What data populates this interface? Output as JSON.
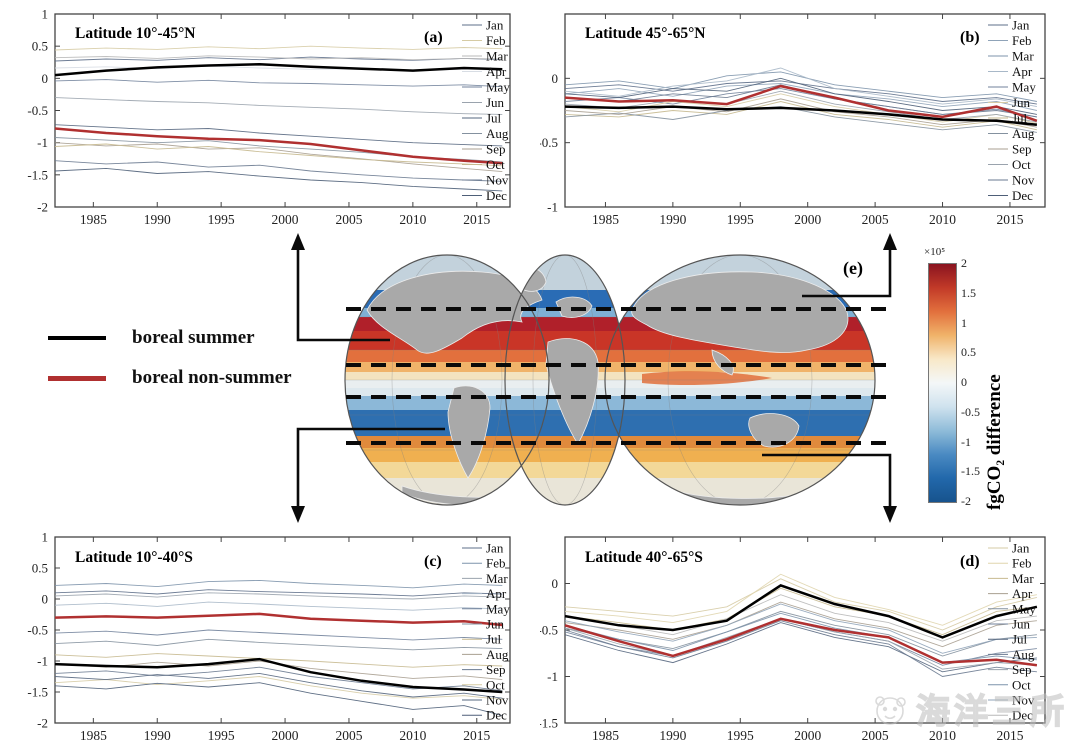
{
  "legend": {
    "summer_label": "boreal summer",
    "non_summer_label": "boreal non-summer",
    "summer_color": "#000000",
    "non_summer_color": "#b03030"
  },
  "map": {
    "panel_label": "(e)",
    "land_color": "#a9a9a9",
    "dashed_latitudes": [
      "45N",
      "10N",
      "10S",
      "40S"
    ],
    "band_colors": [
      "#c3d2dc",
      "#2a6cb5",
      "#7fb0d4",
      "#b0202a",
      "#c93527",
      "#e2703d",
      "#f0b36a",
      "#f3e3c0",
      "#e9eef0",
      "#dde8ee",
      "#8cb8d8",
      "#2e6fb0",
      "#e08a3c",
      "#f0b050",
      "#f3d898",
      "#e9e5d8"
    ],
    "accent_warm": "#e0703c",
    "colorbar": {
      "exponent": "×10⁵",
      "ticks": [
        "2",
        "1.5",
        "1",
        "0.5",
        "0",
        "-0.5",
        "-1",
        "-1.5",
        "-2"
      ],
      "label": "fgCO₂ difference",
      "stops": [
        "#8a1420",
        "#c23a28",
        "#e2703d",
        "#f0b36a",
        "#f8e8c8",
        "#f4f7f8",
        "#cfe2ee",
        "#8fbcd9",
        "#4a8ac2",
        "#2268ab",
        "#17538d"
      ]
    }
  },
  "watermark": {
    "text": "海洋三所"
  },
  "chart_data": [
    {
      "type": "line",
      "panel": "a",
      "title": "Latitude 10°-45°N",
      "corner_label": "(a)",
      "xlim": [
        1982,
        2017.6
      ],
      "ylim": [
        -2,
        1
      ],
      "x": [
        1982,
        1986,
        1990,
        1994,
        1998,
        2002,
        2006,
        2010,
        2014,
        2017
      ],
      "xticks": [
        "1985",
        "1990",
        "1995",
        "2000",
        "2005",
        "2010",
        "2015"
      ],
      "yticks": [
        "1",
        "0.5",
        "0",
        "-0.5",
        "-1",
        "-1.5",
        "-2"
      ],
      "months": {
        "names": [
          "Jan",
          "Feb",
          "Mar",
          "Apr",
          "May",
          "Jun",
          "Jul",
          "Aug",
          "Sep",
          "Oct",
          "Nov",
          "Dec"
        ],
        "colors": [
          "#5e6f8a",
          "#d6cba4",
          "#b8b8b8",
          "#d8dde4",
          "#71829b",
          "#9aa3ad",
          "#56677f",
          "#84919f",
          "#a89f90",
          "#c7b98f",
          "#6a7a90",
          "#4e5f78"
        ],
        "values": [
          [
            0.27,
            0.3,
            0.28,
            0.32,
            0.29,
            0.33,
            0.3,
            0.28,
            0.31,
            0.29
          ],
          [
            0.44,
            0.47,
            0.45,
            0.49,
            0.46,
            0.5,
            0.47,
            0.45,
            0.48,
            0.46
          ],
          [
            0.32,
            0.34,
            0.31,
            0.35,
            0.33,
            0.3,
            0.32,
            0.29,
            0.31,
            0.3
          ],
          [
            0.16,
            0.18,
            0.15,
            0.19,
            0.16,
            0.14,
            0.15,
            0.12,
            0.14,
            0.13
          ],
          [
            -0.04,
            -0.02,
            -0.06,
            -0.03,
            -0.07,
            -0.08,
            -0.1,
            -0.12,
            -0.1,
            -0.13
          ],
          [
            -0.3,
            -0.33,
            -0.36,
            -0.38,
            -0.42,
            -0.45,
            -0.48,
            -0.52,
            -0.55,
            -0.56
          ],
          [
            -0.72,
            -0.76,
            -0.8,
            -0.78,
            -0.85,
            -0.9,
            -0.95,
            -1.0,
            -1.03,
            -1.05
          ],
          [
            -0.92,
            -0.96,
            -1.0,
            -0.97,
            -1.05,
            -1.1,
            -1.15,
            -1.22,
            -1.26,
            -1.3
          ],
          [
            -1.0,
            -1.05,
            -1.02,
            -1.1,
            -1.08,
            -1.18,
            -1.25,
            -1.33,
            -1.4,
            -1.45
          ],
          [
            -1.06,
            -1.02,
            -1.1,
            -1.06,
            -1.14,
            -1.2,
            -1.26,
            -1.3,
            -1.33,
            -1.36
          ],
          [
            -1.28,
            -1.33,
            -1.3,
            -1.38,
            -1.35,
            -1.44,
            -1.5,
            -1.55,
            -1.58,
            -1.6
          ],
          [
            -1.44,
            -1.4,
            -1.48,
            -1.45,
            -1.52,
            -1.58,
            -1.62,
            -1.68,
            -1.72,
            -1.75
          ]
        ]
      },
      "series": [
        {
          "name": "boreal summer",
          "color": "#000000",
          "values": [
            0.05,
            0.12,
            0.17,
            0.2,
            0.22,
            0.18,
            0.15,
            0.12,
            0.16,
            0.14
          ]
        },
        {
          "name": "boreal non-summer",
          "color": "#b03030",
          "values": [
            -0.78,
            -0.85,
            -0.9,
            -0.94,
            -0.96,
            -1.02,
            -1.12,
            -1.22,
            -1.28,
            -1.32
          ]
        }
      ]
    },
    {
      "type": "line",
      "panel": "b",
      "title": "Latitude 45°-65°N",
      "corner_label": "(b)",
      "xlim": [
        1982,
        2017.6
      ],
      "ylim": [
        -1,
        0.5
      ],
      "x": [
        1982,
        1986,
        1990,
        1994,
        1998,
        2002,
        2006,
        2010,
        2014,
        2017
      ],
      "xticks": [
        "1985",
        "1990",
        "1995",
        "2000",
        "2005",
        "2010",
        "2015"
      ],
      "yticks": [
        "0",
        "-0.5",
        "-1"
      ],
      "months": {
        "names": [
          "Jan",
          "Feb",
          "Mar",
          "Apr",
          "May",
          "Jun",
          "Jul",
          "Aug",
          "Sep",
          "Oct",
          "Nov",
          "Dec"
        ],
        "colors": [
          "#5e6f8a",
          "#8fa3b8",
          "#7d93ab",
          "#a8b8c8",
          "#71829b",
          "#d6cba4",
          "#c7b98f",
          "#84919f",
          "#a89f90",
          "#9aa3ad",
          "#6a7a90",
          "#4e5f78"
        ],
        "values": [
          [
            -0.08,
            -0.05,
            -0.1,
            -0.04,
            -0.02,
            -0.08,
            -0.12,
            -0.18,
            -0.15,
            -0.2
          ],
          [
            -0.12,
            -0.08,
            -0.14,
            -0.06,
            -0.04,
            -0.12,
            -0.16,
            -0.22,
            -0.18,
            -0.25
          ],
          [
            -0.05,
            -0.02,
            -0.08,
            0.02,
            0.05,
            -0.05,
            -0.1,
            -0.15,
            -0.12,
            -0.18
          ],
          [
            -0.1,
            -0.14,
            -0.06,
            -0.02,
            0.08,
            -0.08,
            -0.14,
            -0.2,
            -0.16,
            -0.22
          ],
          [
            -0.18,
            -0.15,
            -0.2,
            -0.12,
            -0.08,
            -0.16,
            -0.22,
            -0.28,
            -0.24,
            -0.3
          ],
          [
            -0.22,
            -0.26,
            -0.18,
            -0.22,
            -0.12,
            -0.22,
            -0.28,
            -0.34,
            -0.28,
            -0.35
          ],
          [
            -0.28,
            -0.3,
            -0.25,
            -0.28,
            -0.18,
            -0.28,
            -0.32,
            -0.38,
            -0.33,
            -0.4
          ],
          [
            -0.3,
            -0.27,
            -0.32,
            -0.25,
            -0.22,
            -0.3,
            -0.35,
            -0.4,
            -0.36,
            -0.42
          ],
          [
            -0.25,
            -0.28,
            -0.22,
            -0.26,
            -0.16,
            -0.26,
            -0.3,
            -0.36,
            -0.32,
            -0.38
          ],
          [
            -0.2,
            -0.23,
            -0.17,
            -0.2,
            -0.1,
            -0.2,
            -0.26,
            -0.32,
            -0.28,
            -0.34
          ],
          [
            -0.15,
            -0.18,
            -0.12,
            -0.15,
            -0.05,
            -0.16,
            -0.22,
            -0.28,
            -0.25,
            -0.3
          ],
          [
            -0.12,
            -0.15,
            -0.08,
            -0.1,
            0.0,
            -0.12,
            -0.18,
            -0.25,
            -0.22,
            -0.28
          ]
        ]
      },
      "series": [
        {
          "name": "boreal summer",
          "color": "#000000",
          "values": [
            -0.22,
            -0.23,
            -0.22,
            -0.24,
            -0.23,
            -0.25,
            -0.28,
            -0.32,
            -0.33,
            -0.36
          ]
        },
        {
          "name": "boreal non-summer",
          "color": "#b03030",
          "values": [
            -0.15,
            -0.18,
            -0.17,
            -0.2,
            -0.06,
            -0.15,
            -0.25,
            -0.3,
            -0.22,
            -0.33
          ]
        }
      ]
    },
    {
      "type": "line",
      "panel": "c",
      "title": "Latitude 10°-40°S",
      "corner_label": "(c)",
      "xlim": [
        1982,
        2017.6
      ],
      "ylim": [
        -2,
        1
      ],
      "x": [
        1982,
        1986,
        1990,
        1994,
        1998,
        2002,
        2006,
        2010,
        2014,
        2017
      ],
      "xticks": [
        "1985",
        "1990",
        "1995",
        "2000",
        "2005",
        "2010",
        "2015"
      ],
      "yticks": [
        "1",
        "0.5",
        "0",
        "-0.5",
        "-1",
        "-1.5",
        "-2"
      ],
      "months": {
        "names": [
          "Jan",
          "Feb",
          "Mar",
          "Apr",
          "May",
          "Jun",
          "Jul",
          "Aug",
          "Sep",
          "Oct",
          "Nov",
          "Dec"
        ],
        "colors": [
          "#5e6f8a",
          "#7d93ab",
          "#9aa3ad",
          "#a8b8c8",
          "#71829b",
          "#84919f",
          "#c7b98f",
          "#a89f90",
          "#6a7a90",
          "#d6cba4",
          "#56677f",
          "#4e5f78"
        ],
        "values": [
          [
            0.1,
            0.13,
            0.08,
            0.15,
            0.12,
            0.1,
            0.08,
            0.05,
            0.1,
            0.08
          ],
          [
            0.22,
            0.25,
            0.2,
            0.28,
            0.3,
            0.25,
            0.22,
            0.18,
            0.24,
            0.22
          ],
          [
            0.05,
            0.08,
            0.03,
            0.1,
            0.08,
            0.05,
            0.02,
            0.0,
            0.05,
            0.03
          ],
          [
            -0.1,
            -0.07,
            -0.12,
            -0.05,
            -0.08,
            -0.12,
            -0.15,
            -0.18,
            -0.14,
            -0.16
          ],
          [
            -0.55,
            -0.52,
            -0.58,
            -0.5,
            -0.54,
            -0.58,
            -0.62,
            -0.66,
            -0.62,
            -0.65
          ],
          [
            -0.72,
            -0.68,
            -0.75,
            -0.65,
            -0.7,
            -0.74,
            -0.78,
            -0.82,
            -0.78,
            -0.8
          ],
          [
            -0.9,
            -0.94,
            -0.88,
            -0.92,
            -0.96,
            -1.0,
            -1.05,
            -1.1,
            -1.06,
            -1.08
          ],
          [
            -1.05,
            -1.1,
            -1.02,
            -1.08,
            -1.0,
            -1.12,
            -1.2,
            -1.28,
            -1.24,
            -1.3
          ],
          [
            -1.2,
            -1.16,
            -1.24,
            -1.18,
            -1.1,
            -1.25,
            -1.35,
            -1.45,
            -1.4,
            -1.48
          ],
          [
            -1.35,
            -1.3,
            -1.38,
            -1.32,
            -1.25,
            -1.4,
            -1.52,
            -1.6,
            -1.56,
            -1.62
          ],
          [
            -1.25,
            -1.3,
            -1.22,
            -1.28,
            -1.2,
            -1.35,
            -1.48,
            -1.58,
            -1.52,
            -1.6
          ],
          [
            -1.4,
            -1.45,
            -1.36,
            -1.42,
            -1.35,
            -1.52,
            -1.65,
            -1.78,
            -1.72,
            -1.88
          ]
        ]
      },
      "series": [
        {
          "name": "boreal summer",
          "color": "#000000",
          "values": [
            -1.05,
            -1.08,
            -1.1,
            -1.05,
            -0.97,
            -1.18,
            -1.32,
            -1.42,
            -1.46,
            -1.5
          ]
        },
        {
          "name": "boreal non-summer",
          "color": "#b03030",
          "values": [
            -0.3,
            -0.28,
            -0.3,
            -0.27,
            -0.24,
            -0.32,
            -0.35,
            -0.38,
            -0.36,
            -0.42
          ]
        }
      ]
    },
    {
      "type": "line",
      "panel": "d",
      "title": "Latitude 40°-65°S",
      "corner_label": "(d)",
      "xlim": [
        1982,
        2017.6
      ],
      "ylim": [
        -1.5,
        0.5
      ],
      "x": [
        1982,
        1986,
        1990,
        1994,
        1998,
        2002,
        2006,
        2010,
        2014,
        2017
      ],
      "xticks": [
        "1985",
        "1990",
        "1995",
        "2000",
        "2005",
        "2010",
        "2015"
      ],
      "yticks": [
        "0",
        "-0.5",
        "-1",
        "-1.5"
      ],
      "months": {
        "names": [
          "Jan",
          "Feb",
          "Mar",
          "Apr",
          "May",
          "Jun",
          "Jul",
          "Aug",
          "Sep",
          "Oct",
          "Nov",
          "Dec"
        ],
        "colors": [
          "#d6cba4",
          "#e0d5ae",
          "#c7b98f",
          "#a89f90",
          "#84919f",
          "#71829b",
          "#56677f",
          "#6a7a90",
          "#9aa3ad",
          "#7d93ab",
          "#8fa3b8",
          "#b8b8b8"
        ],
        "values": [
          [
            -0.25,
            -0.3,
            -0.35,
            -0.25,
            0.05,
            -0.2,
            -0.3,
            -0.5,
            -0.25,
            -0.15
          ],
          [
            -0.3,
            -0.35,
            -0.42,
            -0.3,
            0.1,
            -0.15,
            -0.28,
            -0.45,
            -0.2,
            -0.12
          ],
          [
            -0.35,
            -0.42,
            -0.5,
            -0.38,
            -0.05,
            -0.25,
            -0.35,
            -0.55,
            -0.3,
            -0.25
          ],
          [
            -0.42,
            -0.5,
            -0.6,
            -0.45,
            -0.2,
            -0.38,
            -0.48,
            -0.68,
            -0.45,
            -0.4
          ],
          [
            -0.48,
            -0.6,
            -0.7,
            -0.52,
            -0.3,
            -0.45,
            -0.55,
            -0.78,
            -0.6,
            -0.55
          ],
          [
            -0.52,
            -0.68,
            -0.78,
            -0.6,
            -0.38,
            -0.52,
            -0.62,
            -0.88,
            -0.75,
            -0.7
          ],
          [
            -0.55,
            -0.72,
            -0.85,
            -0.65,
            -0.42,
            -0.58,
            -0.68,
            -0.95,
            -0.85,
            -0.8
          ],
          [
            -0.5,
            -0.68,
            -0.8,
            -0.62,
            -0.4,
            -0.55,
            -0.65,
            -1.0,
            -0.9,
            -0.95
          ],
          [
            -0.48,
            -0.65,
            -0.78,
            -0.58,
            -0.38,
            -0.52,
            -0.62,
            -0.92,
            -0.85,
            -0.88
          ],
          [
            -0.45,
            -0.6,
            -0.72,
            -0.52,
            -0.32,
            -0.48,
            -0.58,
            -0.85,
            -0.78,
            -0.82
          ],
          [
            -0.4,
            -0.52,
            -0.62,
            -0.45,
            -0.22,
            -0.4,
            -0.5,
            -0.75,
            -0.6,
            -0.58
          ],
          [
            -0.35,
            -0.45,
            -0.55,
            -0.38,
            -0.12,
            -0.32,
            -0.42,
            -0.62,
            -0.4,
            -0.35
          ]
        ]
      },
      "series": [
        {
          "name": "boreal summer",
          "color": "#000000",
          "values": [
            -0.35,
            -0.45,
            -0.5,
            -0.4,
            -0.02,
            -0.22,
            -0.35,
            -0.58,
            -0.35,
            -0.25
          ]
        },
        {
          "name": "boreal non-summer",
          "color": "#b03030",
          "values": [
            -0.45,
            -0.62,
            -0.78,
            -0.6,
            -0.38,
            -0.5,
            -0.58,
            -0.85,
            -0.82,
            -0.88
          ]
        }
      ]
    }
  ]
}
